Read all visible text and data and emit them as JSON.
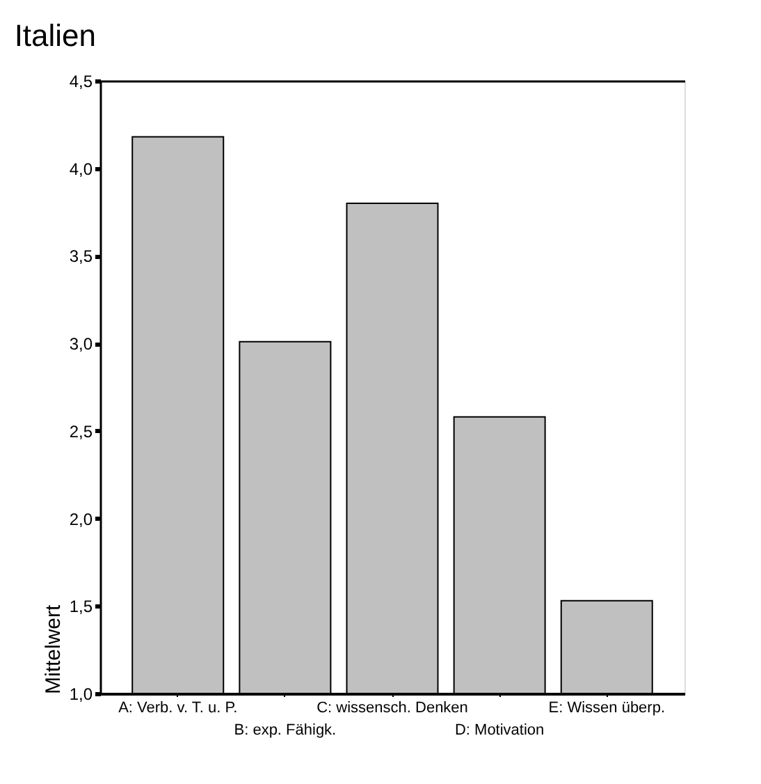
{
  "chart_data": {
    "type": "bar",
    "title": "Italien",
    "ylabel": "Mittelwert",
    "categories": [
      "A: Verb. v. T. u. P.",
      "B: exp. Fähigk.",
      "C: wissensch. Denken",
      "D: Motivation",
      "E: Wissen überp."
    ],
    "values": [
      4.18,
      3.01,
      3.8,
      2.58,
      1.53
    ],
    "color": "#c0c0c0",
    "ylim": [
      1.0,
      4.5
    ],
    "yticks": [
      {
        "value": 1.0,
        "label": "1,0"
      },
      {
        "value": 1.5,
        "label": "1,5"
      },
      {
        "value": 2.0,
        "label": "2,0"
      },
      {
        "value": 2.5,
        "label": "2,5"
      },
      {
        "value": 3.0,
        "label": "3,0"
      },
      {
        "value": 3.5,
        "label": "3,5"
      },
      {
        "value": 4.0,
        "label": "4,0"
      },
      {
        "value": 4.5,
        "label": "4,5"
      }
    ],
    "grid": false
  }
}
